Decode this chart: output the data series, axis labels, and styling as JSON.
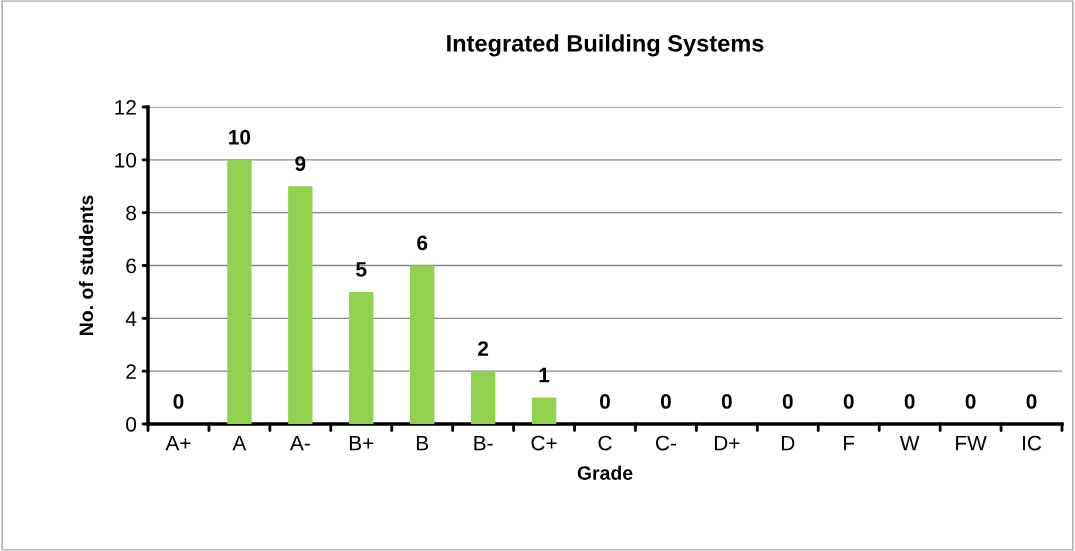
{
  "chart_data": {
    "type": "bar",
    "title": "Integrated Building Systems",
    "xlabel": "Grade",
    "ylabel": "No. of students",
    "categories": [
      "A+",
      "A",
      "A-",
      "B+",
      "B",
      "B-",
      "C+",
      "C",
      "C-",
      "D+",
      "D",
      "F",
      "W",
      "FW",
      "IC"
    ],
    "values": [
      0,
      10,
      9,
      5,
      6,
      2,
      1,
      0,
      0,
      0,
      0,
      0,
      0,
      0,
      0
    ],
    "color": "#92d050",
    "ylim": [
      0,
      12
    ],
    "yticks": [
      0,
      2,
      4,
      6,
      8,
      10,
      12
    ],
    "grid": "y",
    "data_labels": true
  }
}
